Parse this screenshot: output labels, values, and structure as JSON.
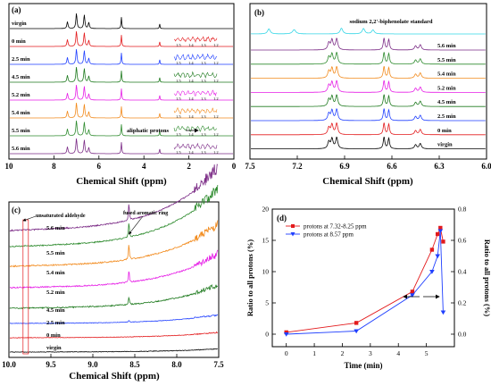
{
  "chart_data": [
    {
      "type": "line",
      "panel_label": "(a)",
      "xlabel": "Chemical Shift (ppm)",
      "ylabel": "",
      "xlim": [
        10,
        0
      ],
      "x_ticks": [
        "10",
        "8",
        "6",
        "4",
        "2",
        "0"
      ],
      "series": [
        {
          "name": "5.6 min",
          "color": "#7b2b86"
        },
        {
          "name": "5.5 min",
          "color": "#2e8b2e"
        },
        {
          "name": "5.4 min",
          "color": "#f28a1c"
        },
        {
          "name": "5.2 min",
          "color": "#e61ee6"
        },
        {
          "name": "4.5 min",
          "color": "#1e7a1e"
        },
        {
          "name": "2.5 min",
          "color": "#1f3fff"
        },
        {
          "name": "0 min",
          "color": "#e31a1c"
        },
        {
          "name": "virgin",
          "color": "#000000"
        }
      ],
      "peaks_ppm": [
        7.4,
        7.0,
        6.65,
        6.45,
        5.0,
        3.3
      ],
      "inset_ticks": [
        "1.5",
        "1.4",
        "1.3",
        "1.2"
      ],
      "annotation": "aliphatic protons"
    },
    {
      "type": "line",
      "panel_label": "(b)",
      "xlabel": "Chemical Shift (ppm)",
      "ylabel": "",
      "xlim": [
        7.5,
        6.0
      ],
      "x_ticks": [
        "7.5",
        "7.2",
        "6.9",
        "6.6",
        "6.3",
        "6.0"
      ],
      "series": [
        {
          "name": "sodium 2,2'-biphenolate standard",
          "color": "#33d6e6"
        },
        {
          "name": "5.6 min",
          "color": "#7b2b86"
        },
        {
          "name": "5.5 min",
          "color": "#2e8b2e"
        },
        {
          "name": "5.4 min",
          "color": "#f28a1c"
        },
        {
          "name": "5.2 min",
          "color": "#e61ee6"
        },
        {
          "name": "4.5 min",
          "color": "#1e7a1e"
        },
        {
          "name": "2.5 min",
          "color": "#1f3fff"
        },
        {
          "name": "0 min",
          "color": "#e31a1c"
        },
        {
          "name": "virgin",
          "color": "#000000"
        }
      ],
      "peaks_ppm": [
        7.0,
        6.95,
        6.65,
        6.62,
        6.42
      ]
    },
    {
      "type": "line",
      "panel_label": "(c)",
      "xlabel": "Chemical Shift (ppm)",
      "ylabel": "",
      "xlim": [
        10.0,
        7.5
      ],
      "x_ticks": [
        "10.0",
        "9.5",
        "9.0",
        "8.5",
        "8.0",
        "7.5"
      ],
      "series": [
        {
          "name": "5.6 min",
          "color": "#7b2b86"
        },
        {
          "name": "5.5 min",
          "color": "#2e8b2e"
        },
        {
          "name": "5.4 min",
          "color": "#f28a1c"
        },
        {
          "name": "5.2 min",
          "color": "#e61ee6"
        },
        {
          "name": "4.5 min",
          "color": "#1e7a1e"
        },
        {
          "name": "2.5 min",
          "color": "#1f3fff"
        },
        {
          "name": "0 min",
          "color": "#e31a1c"
        },
        {
          "name": "virgin",
          "color": "#000000"
        }
      ],
      "annotations": [
        "unsaturated aldehyde",
        "fused aromatic ring"
      ],
      "aldehyde_ppm": 9.8,
      "fused_ring_ppm": 8.57
    },
    {
      "type": "line",
      "panel_label": "(d)",
      "xlabel": "Time (min)",
      "ylabel": "Ratio to all protons (%)",
      "y2label": "Ratio to all protons (%)",
      "xlim": [
        -0.5,
        6
      ],
      "ylim": [
        -2,
        20
      ],
      "y2lim": [
        -0.08,
        0.8
      ],
      "x_ticks": [
        0,
        1,
        2,
        3,
        4,
        5
      ],
      "y_ticks": [
        0,
        5,
        10,
        15,
        20
      ],
      "y2_ticks": [
        0.0,
        0.2,
        0.4,
        0.6,
        0.8
      ],
      "y2_tick_labels": [
        "0.0",
        "0.2",
        "0.4",
        "0.6",
        "0.8"
      ],
      "series": [
        {
          "name": "protons at 7.32-8.25 ppm",
          "axis": "left",
          "color": "#e31a1c",
          "marker": "square",
          "x": [
            0,
            2.5,
            4.5,
            5.2,
            5.4,
            5.5,
            5.6
          ],
          "y": [
            0.3,
            1.8,
            6.8,
            13.5,
            16.0,
            17.0,
            14.8
          ]
        },
        {
          "name": "protons at 8.57 ppm",
          "axis": "right",
          "color": "#1f3fff",
          "marker": "triangle-down",
          "x": [
            0,
            2.5,
            4.5,
            5.2,
            5.4,
            5.5,
            5.6
          ],
          "y": [
            0.0,
            0.02,
            0.25,
            0.4,
            0.5,
            0.66,
            0.14
          ]
        }
      ],
      "legend_position": "top-left"
    }
  ]
}
